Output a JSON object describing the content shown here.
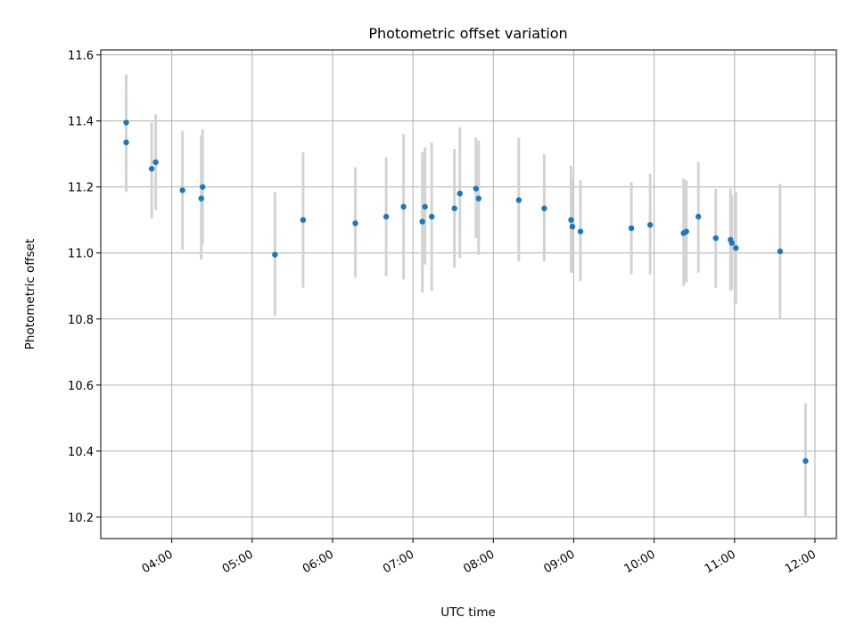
{
  "chart_data": {
    "type": "scatter",
    "title": "Photometric offset variation",
    "xlabel": "UTC time",
    "ylabel": "Photometric offset",
    "x_ticks": [
      "04:00",
      "05:00",
      "06:00",
      "07:00",
      "08:00",
      "09:00",
      "10:00",
      "11:00",
      "12:00"
    ],
    "y_ticks": [
      "10.2",
      "10.4",
      "10.6",
      "10.8",
      "11.0",
      "11.2",
      "11.4",
      "11.6"
    ],
    "xlim": [
      "03:07",
      "12:16"
    ],
    "ylim": [
      10.135,
      11.615
    ],
    "grid": true,
    "marker_color": "#1f77b4",
    "errorbar_color": "#d3d3d3",
    "series": [
      {
        "points": [
          {
            "x": "03:26",
            "y": 11.335,
            "lo": 11.185,
            "hi": 11.49
          },
          {
            "x": "03:26",
            "y": 11.395,
            "lo": 11.25,
            "hi": 11.54
          },
          {
            "x": "03:45",
            "y": 11.255,
            "lo": 11.105,
            "hi": 11.395
          },
          {
            "x": "03:48",
            "y": 11.275,
            "lo": 11.13,
            "hi": 11.42
          },
          {
            "x": "04:08",
            "y": 11.19,
            "lo": 11.01,
            "hi": 11.37
          },
          {
            "x": "04:22",
            "y": 11.165,
            "lo": 10.98,
            "hi": 11.355
          },
          {
            "x": "04:23",
            "y": 11.2,
            "lo": 11.025,
            "hi": 11.375
          },
          {
            "x": "05:17",
            "y": 10.995,
            "lo": 10.81,
            "hi": 11.185
          },
          {
            "x": "05:38",
            "y": 11.1,
            "lo": 10.895,
            "hi": 11.305
          },
          {
            "x": "06:17",
            "y": 11.09,
            "lo": 10.925,
            "hi": 11.26
          },
          {
            "x": "06:40",
            "y": 11.11,
            "lo": 10.93,
            "hi": 11.29
          },
          {
            "x": "06:53",
            "y": 11.14,
            "lo": 10.92,
            "hi": 11.36
          },
          {
            "x": "07:07",
            "y": 11.095,
            "lo": 10.88,
            "hi": 11.305
          },
          {
            "x": "07:09",
            "y": 11.14,
            "lo": 10.965,
            "hi": 11.32
          },
          {
            "x": "07:14",
            "y": 11.11,
            "lo": 10.885,
            "hi": 11.335
          },
          {
            "x": "07:31",
            "y": 11.135,
            "lo": 10.955,
            "hi": 11.315
          },
          {
            "x": "07:35",
            "y": 11.18,
            "lo": 10.985,
            "hi": 11.38
          },
          {
            "x": "07:47",
            "y": 11.195,
            "lo": 11.045,
            "hi": 11.35
          },
          {
            "x": "07:49",
            "y": 11.165,
            "lo": 10.995,
            "hi": 11.34
          },
          {
            "x": "08:19",
            "y": 11.16,
            "lo": 10.975,
            "hi": 11.35
          },
          {
            "x": "08:38",
            "y": 11.135,
            "lo": 10.975,
            "hi": 11.3
          },
          {
            "x": "08:58",
            "y": 11.1,
            "lo": 10.94,
            "hi": 11.265
          },
          {
            "x": "08:59",
            "y": 11.08,
            "lo": 10.94,
            "hi": 11.225
          },
          {
            "x": "09:05",
            "y": 11.065,
            "lo": 10.915,
            "hi": 11.22
          },
          {
            "x": "09:43",
            "y": 11.075,
            "lo": 10.935,
            "hi": 11.215
          },
          {
            "x": "09:57",
            "y": 11.085,
            "lo": 10.935,
            "hi": 11.24
          },
          {
            "x": "10:22",
            "y": 11.06,
            "lo": 10.9,
            "hi": 11.225
          },
          {
            "x": "10:24",
            "y": 11.065,
            "lo": 10.91,
            "hi": 11.22
          },
          {
            "x": "10:33",
            "y": 11.11,
            "lo": 10.94,
            "hi": 11.275
          },
          {
            "x": "10:46",
            "y": 11.045,
            "lo": 10.895,
            "hi": 11.195
          },
          {
            "x": "10:57",
            "y": 11.04,
            "lo": 10.885,
            "hi": 11.195
          },
          {
            "x": "10:58",
            "y": 11.03,
            "lo": 10.89,
            "hi": 11.175
          },
          {
            "x": "11:01",
            "y": 11.015,
            "lo": 10.845,
            "hi": 11.185
          },
          {
            "x": "11:34",
            "y": 11.005,
            "lo": 10.8,
            "hi": 11.21
          },
          {
            "x": "11:53",
            "y": 10.37,
            "lo": 10.2,
            "hi": 10.545
          }
        ]
      }
    ]
  }
}
